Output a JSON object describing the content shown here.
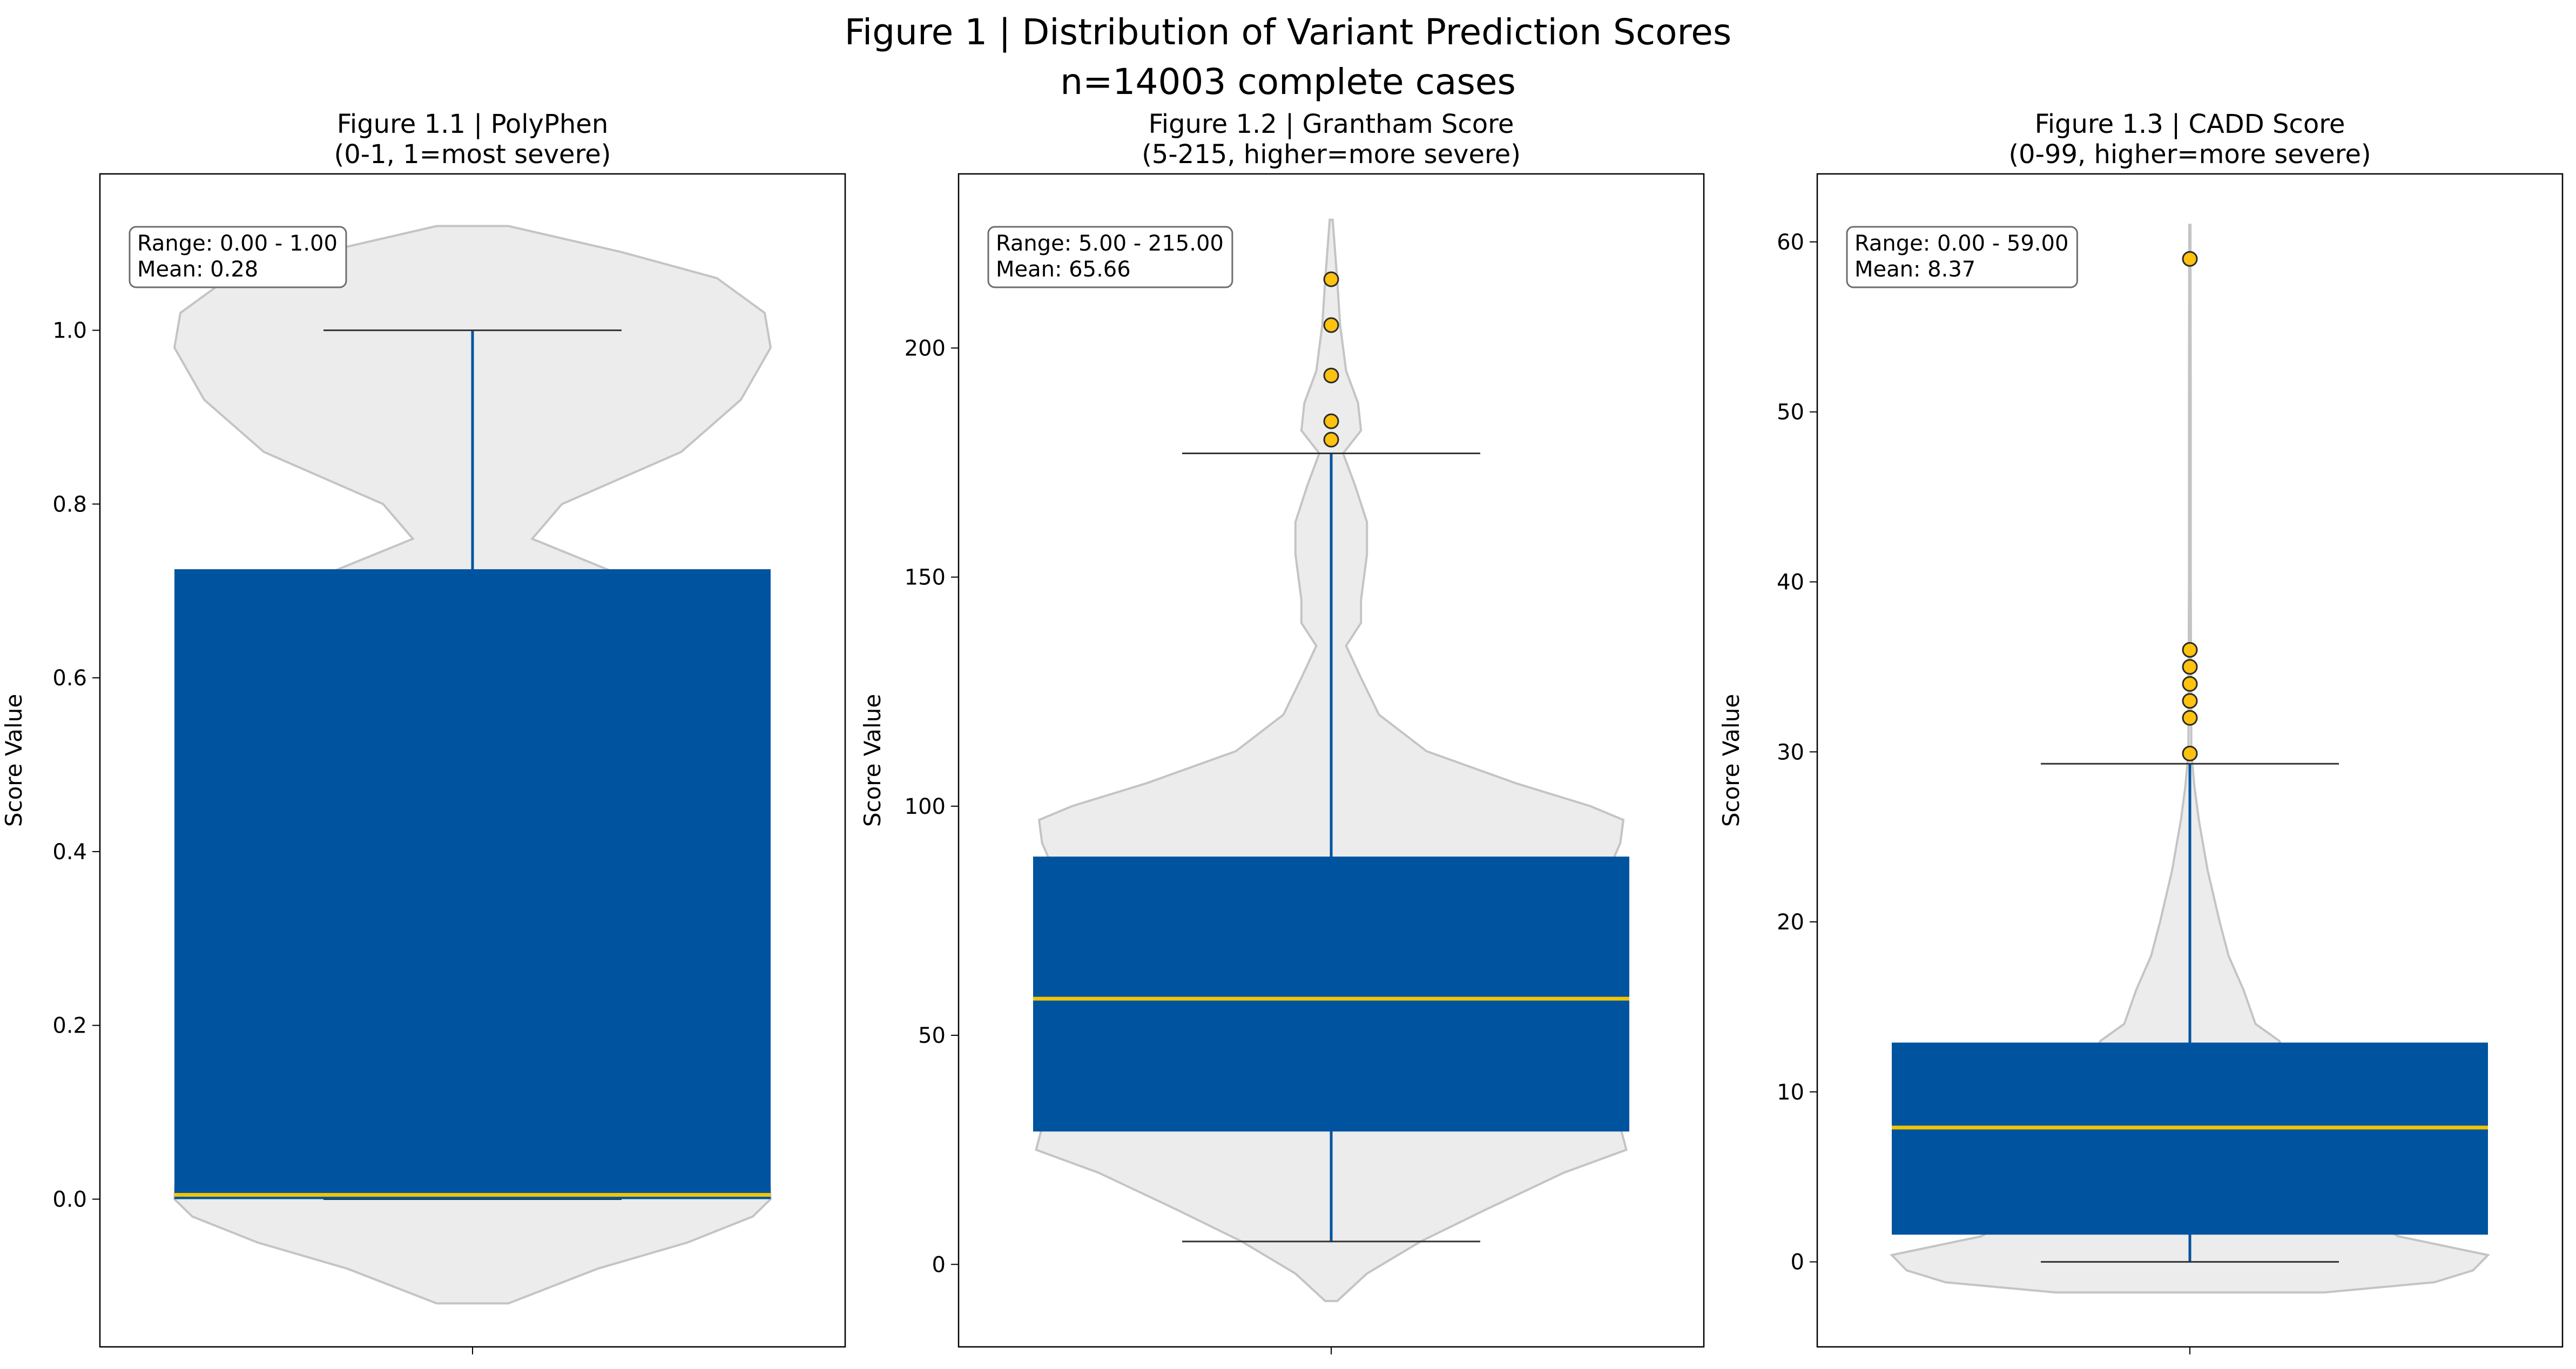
{
  "figure": {
    "title_line1": "Figure 1 | Distribution of Variant Prediction Scores",
    "title_line2": "n=14003 complete cases"
  },
  "colors": {
    "box": "#00549f",
    "median": "#f2c500",
    "violin_fill": "#ececec",
    "violin_edge": "#c4c4c4",
    "whisker_cap": "#333333",
    "outlier_fill": "#ffc20e",
    "outlier_edge": "#2b2b2b"
  },
  "chart_data": [
    {
      "type": "box",
      "title_line1": "Figure 1.1 | PolyPhen",
      "title_line2": "(0-1, 1=most severe)",
      "ylabel": "Score Value",
      "ylim": [
        -0.17,
        1.18
      ],
      "yticks": [
        0.0,
        0.2,
        0.4,
        0.6,
        0.8,
        1.0
      ],
      "ytick_labels": [
        "0.0",
        "0.2",
        "0.4",
        "0.6",
        "0.8",
        "1.0"
      ],
      "box": {
        "whisker_low": 0.0,
        "q1": 0.0,
        "median": 0.005,
        "q3": 0.725,
        "whisker_high": 1.0
      },
      "outliers": [],
      "violin": [
        [
          -0.12,
          0.12
        ],
        [
          -0.08,
          0.42
        ],
        [
          -0.05,
          0.72
        ],
        [
          -0.02,
          0.94
        ],
        [
          0.0,
          1.0
        ],
        [
          0.05,
          0.99
        ],
        [
          0.2,
          0.93
        ],
        [
          0.4,
          0.87
        ],
        [
          0.6,
          0.82
        ],
        [
          0.7,
          0.63
        ],
        [
          0.76,
          0.2
        ],
        [
          0.8,
          0.3
        ],
        [
          0.86,
          0.7
        ],
        [
          0.92,
          0.9
        ],
        [
          0.98,
          1.0
        ],
        [
          1.02,
          0.98
        ],
        [
          1.06,
          0.82
        ],
        [
          1.09,
          0.5
        ],
        [
          1.12,
          0.12
        ]
      ],
      "stats": {
        "range": "Range: 0.00 - 1.00",
        "mean": "Mean: 0.28"
      }
    },
    {
      "type": "box",
      "title_line1": "Figure 1.2 | Grantham Score",
      "title_line2": "(5-215, higher=more severe)",
      "ylabel": "Score Value",
      "ylim": [
        -18,
        238
      ],
      "yticks": [
        0,
        50,
        100,
        150,
        200
      ],
      "ytick_labels": [
        "0",
        "50",
        "100",
        "150",
        "200"
      ],
      "box": {
        "whisker_low": 5,
        "q1": 29,
        "median": 58,
        "q3": 89,
        "whisker_high": 177
      },
      "outliers": [
        180,
        184,
        194,
        205,
        215
      ],
      "violin": [
        [
          -8,
          0.02
        ],
        [
          -2,
          0.12
        ],
        [
          5,
          0.3
        ],
        [
          12,
          0.52
        ],
        [
          20,
          0.78
        ],
        [
          25,
          0.99
        ],
        [
          30,
          0.97
        ],
        [
          40,
          0.9
        ],
        [
          60,
          0.85
        ],
        [
          80,
          0.89
        ],
        [
          92,
          0.97
        ],
        [
          97,
          0.98
        ],
        [
          100,
          0.87
        ],
        [
          105,
          0.62
        ],
        [
          112,
          0.32
        ],
        [
          120,
          0.16
        ],
        [
          128,
          0.1
        ],
        [
          135,
          0.05
        ],
        [
          140,
          0.1
        ],
        [
          145,
          0.1
        ],
        [
          155,
          0.12
        ],
        [
          162,
          0.12
        ],
        [
          170,
          0.08
        ],
        [
          177,
          0.04
        ],
        [
          182,
          0.1
        ],
        [
          188,
          0.09
        ],
        [
          195,
          0.05
        ],
        [
          205,
          0.03
        ],
        [
          215,
          0.02
        ],
        [
          228,
          0.005
        ]
      ],
      "stats": {
        "range": "Range: 5.00 - 215.00",
        "mean": "Mean: 65.66"
      }
    },
    {
      "type": "box",
      "title_line1": "Figure 1.3 | CADD Score",
      "title_line2": "(0-99, higher=more severe)",
      "ylabel": "Score Value",
      "ylim": [
        -5,
        64
      ],
      "yticks": [
        0,
        10,
        20,
        30,
        40,
        50,
        60
      ],
      "ytick_labels": [
        "0",
        "10",
        "20",
        "30",
        "40",
        "50",
        "60"
      ],
      "box": {
        "whisker_low": 0,
        "q1": 1.6,
        "median": 7.9,
        "q3": 12.9,
        "whisker_high": 29.3
      },
      "outliers": [
        29.9,
        32,
        33,
        34,
        35,
        36,
        59
      ],
      "violin": [
        [
          -1.8,
          0.45
        ],
        [
          -1.2,
          0.82
        ],
        [
          -0.5,
          0.95
        ],
        [
          0.4,
          1.0
        ],
        [
          1.5,
          0.7
        ],
        [
          3,
          0.55
        ],
        [
          6,
          0.45
        ],
        [
          10,
          0.38
        ],
        [
          13,
          0.3
        ],
        [
          14,
          0.22
        ],
        [
          16,
          0.18
        ],
        [
          18,
          0.13
        ],
        [
          20,
          0.1
        ],
        [
          23,
          0.06
        ],
        [
          26,
          0.03
        ],
        [
          28,
          0.015
        ],
        [
          30,
          0.005
        ],
        [
          40,
          0.003
        ],
        [
          50,
          0.003
        ],
        [
          61,
          0.002
        ]
      ],
      "stats": {
        "range": "Range: 0.00 - 59.00",
        "mean": "Mean: 8.37"
      }
    }
  ]
}
